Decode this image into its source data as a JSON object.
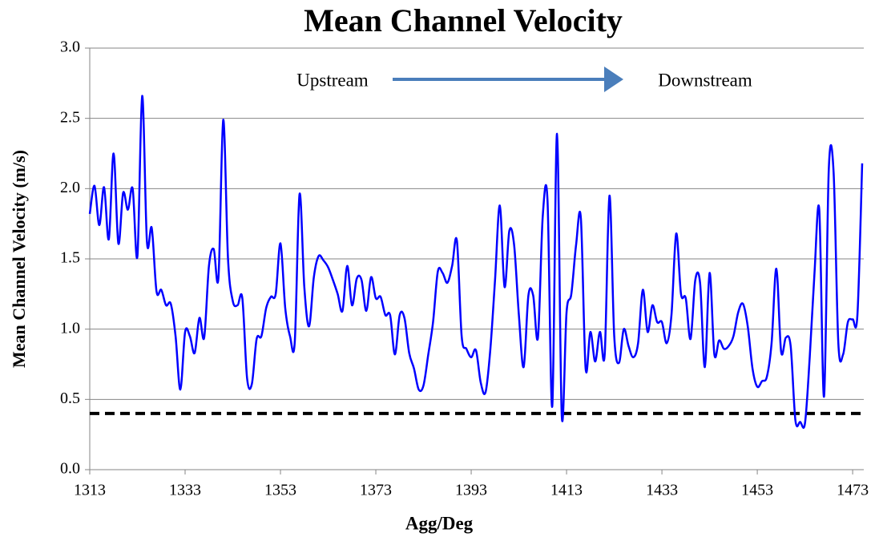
{
  "chart_data": {
    "type": "line",
    "title": "Mean Channel Velocity",
    "xlabel": "Agg/Deg",
    "ylabel": "Mean Channel Velocity (m/s)",
    "annotations": [
      "Upstream",
      "Downstream"
    ],
    "x": [
      1313,
      1314,
      1315,
      1316,
      1317,
      1318,
      1319,
      1320,
      1321,
      1322,
      1323,
      1324,
      1325,
      1326,
      1327,
      1328,
      1329,
      1330,
      1331,
      1332,
      1333,
      1334,
      1335,
      1336,
      1337,
      1338,
      1339,
      1340,
      1341,
      1342,
      1343,
      1344,
      1345,
      1346,
      1347,
      1348,
      1349,
      1350,
      1351,
      1352,
      1353,
      1354,
      1355,
      1356,
      1357,
      1358,
      1359,
      1360,
      1361,
      1362,
      1363,
      1364,
      1365,
      1366,
      1367,
      1368,
      1369,
      1370,
      1371,
      1372,
      1373,
      1374,
      1375,
      1376,
      1377,
      1378,
      1379,
      1380,
      1381,
      1382,
      1383,
      1384,
      1385,
      1386,
      1387,
      1388,
      1389,
      1390,
      1391,
      1392,
      1393,
      1394,
      1395,
      1396,
      1397,
      1398,
      1399,
      1400,
      1401,
      1402,
      1403,
      1404,
      1405,
      1406,
      1407,
      1408,
      1409,
      1410,
      1411,
      1412,
      1413,
      1414,
      1415,
      1416,
      1417,
      1418,
      1419,
      1420,
      1421,
      1422,
      1423,
      1424,
      1425,
      1426,
      1427,
      1428,
      1429,
      1430,
      1431,
      1432,
      1433,
      1434,
      1435,
      1436,
      1437,
      1438,
      1439,
      1440,
      1441,
      1442,
      1443,
      1444,
      1445,
      1446,
      1447,
      1448,
      1449,
      1450,
      1451,
      1452,
      1453,
      1454,
      1455,
      1456,
      1457,
      1458,
      1459,
      1460,
      1461,
      1462,
      1463,
      1464,
      1465,
      1466,
      1467,
      1468,
      1469,
      1470,
      1471,
      1472,
      1473,
      1474,
      1475
    ],
    "series": [
      {
        "name": "Mean Channel Velocity",
        "color": "#0000ff",
        "values": [
          1.82,
          2.02,
          1.74,
          2.01,
          1.64,
          2.25,
          1.61,
          1.97,
          1.85,
          2.0,
          1.52,
          2.66,
          1.62,
          1.72,
          1.27,
          1.28,
          1.17,
          1.18,
          0.95,
          0.57,
          0.98,
          0.95,
          0.83,
          1.08,
          0.94,
          1.45,
          1.57,
          1.37,
          2.49,
          1.5,
          1.2,
          1.17,
          1.22,
          0.65,
          0.61,
          0.93,
          0.95,
          1.15,
          1.23,
          1.25,
          1.61,
          1.15,
          0.95,
          0.91,
          1.96,
          1.3,
          1.02,
          1.37,
          1.52,
          1.49,
          1.44,
          1.35,
          1.25,
          1.13,
          1.45,
          1.17,
          1.36,
          1.35,
          1.13,
          1.37,
          1.22,
          1.23,
          1.1,
          1.1,
          0.82,
          1.1,
          1.08,
          0.83,
          0.72,
          0.57,
          0.6,
          0.82,
          1.05,
          1.41,
          1.4,
          1.33,
          1.45,
          1.63,
          0.95,
          0.86,
          0.8,
          0.85,
          0.62,
          0.55,
          0.85,
          1.35,
          1.88,
          1.3,
          1.7,
          1.6,
          1.1,
          0.73,
          1.24,
          1.24,
          0.94,
          1.8,
          1.92,
          0.45,
          2.39,
          0.38,
          1.12,
          1.25,
          1.6,
          1.79,
          0.72,
          0.98,
          0.77,
          0.98,
          0.82,
          1.95,
          0.95,
          0.76,
          1.0,
          0.88,
          0.8,
          0.9,
          1.28,
          0.98,
          1.17,
          1.05,
          1.05,
          0.9,
          1.1,
          1.68,
          1.25,
          1.22,
          0.93,
          1.35,
          1.33,
          0.73,
          1.4,
          0.82,
          0.92,
          0.86,
          0.88,
          0.95,
          1.12,
          1.18,
          1.02,
          0.72,
          0.59,
          0.63,
          0.66,
          0.9,
          1.43,
          0.84,
          0.94,
          0.88,
          0.35,
          0.34,
          0.33,
          0.8,
          1.4,
          1.85,
          0.52,
          2.14,
          2.12,
          0.9,
          0.82,
          1.05,
          1.07,
          1.1,
          2.18
        ]
      }
    ],
    "threshold": {
      "value": 0.4,
      "color": "#000000"
    },
    "xlim": [
      1313,
      1475
    ],
    "xticks": [
      1313,
      1333,
      1353,
      1373,
      1393,
      1413,
      1433,
      1453,
      1473
    ],
    "ylim": [
      0,
      3
    ],
    "yticks": [
      {
        "value": 0,
        "label": "0.0"
      },
      {
        "value": 0.5,
        "label": "0.5"
      },
      {
        "value": 1,
        "label": "1.0"
      },
      {
        "value": 1.5,
        "label": "1.5"
      },
      {
        "value": 2,
        "label": "2.0"
      },
      {
        "value": 2.5,
        "label": "2.5"
      },
      {
        "value": 3,
        "label": "3.0"
      }
    ],
    "grid": true
  }
}
